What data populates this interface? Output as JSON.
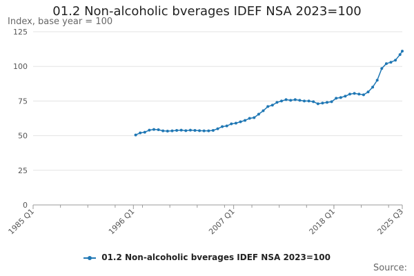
{
  "chart_data": {
    "type": "line",
    "title": "01.2 Non-alcoholic bverages IDEF NSA 2023=100",
    "subtitle": "Index, base year = 100",
    "ylabel": "",
    "xlabel": "",
    "ylim": [
      0,
      125
    ],
    "y_ticks": [
      0,
      25,
      50,
      75,
      100,
      125
    ],
    "x_range": [
      "1985 Q1",
      "2025 Q3"
    ],
    "x_ticks": [
      "1985 Q1",
      "1996 Q1",
      "2007 Q1",
      "2018 Q1",
      "2025 Q3"
    ],
    "grid": true,
    "legend_position": "bottom",
    "color": "#1f77b4",
    "series": [
      {
        "name": "01.2 Non-alcoholic bverages IDEF NSA 2023=100",
        "points": [
          [
            "1996 Q2",
            50.5
          ],
          [
            "1996 Q4",
            52.0
          ],
          [
            "1997 Q2",
            52.5
          ],
          [
            "1997 Q4",
            54.0
          ],
          [
            "1998 Q2",
            54.5
          ],
          [
            "1998 Q4",
            54.3
          ],
          [
            "1999 Q2",
            53.5
          ],
          [
            "1999 Q4",
            53.3
          ],
          [
            "2000 Q2",
            53.5
          ],
          [
            "2000 Q4",
            53.8
          ],
          [
            "2001 Q2",
            54.0
          ],
          [
            "2001 Q4",
            53.6
          ],
          [
            "2002 Q2",
            54.0
          ],
          [
            "2002 Q4",
            53.8
          ],
          [
            "2003 Q2",
            53.6
          ],
          [
            "2003 Q4",
            53.5
          ],
          [
            "2004 Q2",
            53.5
          ],
          [
            "2004 Q4",
            53.8
          ],
          [
            "2005 Q2",
            55.0
          ],
          [
            "2005 Q4",
            56.5
          ],
          [
            "2006 Q2",
            57.0
          ],
          [
            "2006 Q4",
            58.5
          ],
          [
            "2007 Q2",
            59.0
          ],
          [
            "2007 Q4",
            60.0
          ],
          [
            "2008 Q2",
            61.0
          ],
          [
            "2008 Q4",
            62.5
          ],
          [
            "2009 Q2",
            63.0
          ],
          [
            "2009 Q4",
            65.5
          ],
          [
            "2010 Q2",
            68.0
          ],
          [
            "2010 Q4",
            71.0
          ],
          [
            "2011 Q2",
            72.0
          ],
          [
            "2011 Q4",
            74.0
          ],
          [
            "2012 Q2",
            75.0
          ],
          [
            "2012 Q4",
            76.0
          ],
          [
            "2013 Q2",
            75.5
          ],
          [
            "2013 Q4",
            76.0
          ],
          [
            "2014 Q2",
            75.5
          ],
          [
            "2014 Q4",
            75.0
          ],
          [
            "2015 Q2",
            75.0
          ],
          [
            "2015 Q4",
            74.5
          ],
          [
            "2016 Q2",
            73.0
          ],
          [
            "2016 Q4",
            73.5
          ],
          [
            "2017 Q2",
            74.0
          ],
          [
            "2017 Q4",
            74.5
          ],
          [
            "2018 Q2",
            77.0
          ],
          [
            "2018 Q4",
            77.5
          ],
          [
            "2019 Q2",
            78.5
          ],
          [
            "2019 Q4",
            80.0
          ],
          [
            "2020 Q2",
            80.5
          ],
          [
            "2020 Q4",
            80.0
          ],
          [
            "2021 Q2",
            79.5
          ],
          [
            "2021 Q4",
            81.5
          ],
          [
            "2022 Q2",
            85.0
          ],
          [
            "2022 Q4",
            90.0
          ],
          [
            "2023 Q2",
            98.5
          ],
          [
            "2023 Q4",
            102.0
          ],
          [
            "2024 Q2",
            103.0
          ],
          [
            "2024 Q4",
            104.5
          ],
          [
            "2025 Q2",
            108.5
          ],
          [
            "2025 Q3",
            111.0
          ]
        ]
      }
    ]
  },
  "footer": {
    "source_label": "Source:"
  }
}
